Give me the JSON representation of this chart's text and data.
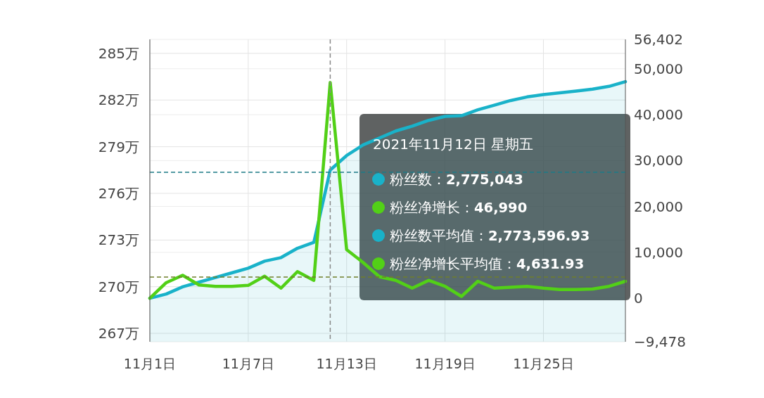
{
  "chart_data": {
    "type": "line",
    "x": [
      "2021-11-01",
      "2021-11-02",
      "2021-11-03",
      "2021-11-04",
      "2021-11-05",
      "2021-11-06",
      "2021-11-07",
      "2021-11-08",
      "2021-11-09",
      "2021-11-10",
      "2021-11-11",
      "2021-11-12",
      "2021-11-13",
      "2021-11-14",
      "2021-11-15",
      "2021-11-16",
      "2021-11-17",
      "2021-11-18",
      "2021-11-19",
      "2021-11-20",
      "2021-11-21",
      "2021-11-22",
      "2021-11-23",
      "2021-11-24",
      "2021-11-25",
      "2021-11-26",
      "2021-11-27",
      "2021-11-28",
      "2021-11-29",
      "2021-11-30"
    ],
    "series": [
      {
        "type": "area",
        "color": "#19b2c9",
        "values": [
          269.26,
          269.53,
          269.99,
          270.29,
          270.59,
          270.89,
          271.19,
          271.64,
          271.87,
          272.47,
          272.85,
          277.5,
          278.43,
          279.11,
          279.56,
          280.01,
          280.32,
          280.69,
          280.95,
          280.99,
          281.37,
          281.67,
          281.97,
          282.2,
          282.35,
          282.46,
          282.58,
          282.7,
          282.88,
          283.18
        ]
      },
      {
        "axis": "y2",
        "color": "#52d017",
        "values": [
          0,
          3400,
          5000,
          2900,
          2600,
          2600,
          2800,
          4800,
          2200,
          5800,
          3900,
          47000,
          10600,
          7800,
          4700,
          3900,
          2200,
          3900,
          2600,
          400,
          3700,
          2200,
          2400,
          2600,
          2200,
          1900,
          1900,
          2000,
          2600,
          3700
        ]
      }
    ],
    "xlim": [
      "2021-11-01",
      "2021-11-30"
    ],
    "xticks": [
      {
        "value": "2021-11-01",
        "label": "11月1日"
      },
      {
        "value": "2021-11-07",
        "label": "11月7日"
      },
      {
        "value": "2021-11-13",
        "label": "11月13日"
      },
      {
        "value": "2021-11-19",
        "label": "11月19日"
      },
      {
        "value": "2021-11-25",
        "label": "11月25日"
      }
    ],
    "ylim": [
      266.46,
      285.9
    ],
    "yticks": [
      {
        "value": 267,
        "label": "267万"
      },
      {
        "value": 270,
        "label": "270万"
      },
      {
        "value": 273,
        "label": "273万"
      },
      {
        "value": 276,
        "label": "276万"
      },
      {
        "value": 279,
        "label": "279万"
      },
      {
        "value": 282,
        "label": "282万"
      },
      {
        "value": 285,
        "label": "285万"
      }
    ],
    "y2lim": [
      -9478,
      56402
    ],
    "y2ticks": [
      {
        "value": -9478,
        "label": "−9,478"
      },
      {
        "value": 0,
        "label": "0"
      },
      {
        "value": 10000,
        "label": "10,000"
      },
      {
        "value": 20000,
        "label": "20,000"
      },
      {
        "value": 30000,
        "label": "30,000"
      },
      {
        "value": 40000,
        "label": "40,000"
      },
      {
        "value": 50000,
        "label": "50,000"
      },
      {
        "value": 56402,
        "label": "56,402"
      }
    ],
    "grid": true,
    "ref_lines": [
      {
        "axis": "x",
        "value": "2021-11-12",
        "color": "#888888",
        "line_style": "dashed"
      },
      {
        "axis": "y",
        "value": 277.36,
        "color": "#1d7b87",
        "line_style": "dashed"
      },
      {
        "axis": "y2",
        "value": 4631.93,
        "color": "#6f7f2a",
        "line_style": "dashed"
      }
    ],
    "annotations": [
      "2021年11月12日 星期五",
      "粉丝数：**2,775,043**",
      "粉丝净增长：**46,990**",
      "粉丝数平均值：**2,773,596.93**",
      "粉丝净增长平均值：**4,631.93**"
    ]
  }
}
